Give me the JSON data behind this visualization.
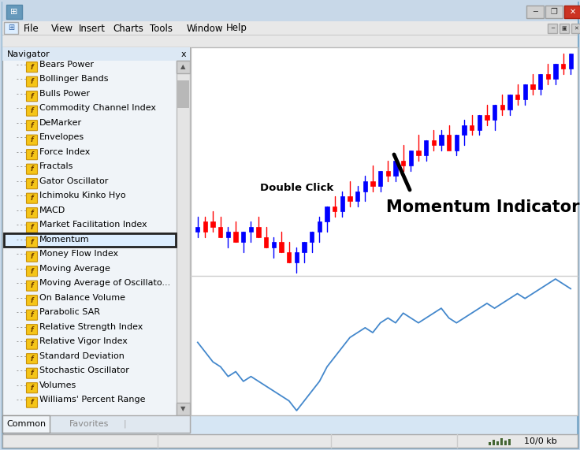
{
  "bg_color": "#c8d8e8",
  "navigator_items": [
    "Bears Power",
    "Bollinger Bands",
    "Bulls Power",
    "Commodity Channel Index",
    "DeMarker",
    "Envelopes",
    "Force Index",
    "Fractals",
    "Gator Oscillator",
    "Ichimoku Kinko Hyo",
    "MACD",
    "Market Facilitation Index",
    "Momentum",
    "Money Flow Index",
    "Moving Average",
    "Moving Average of Oscillato...",
    "On Balance Volume",
    "Parabolic SAR",
    "Relative Strength Index",
    "Relative Vigor Index",
    "Standard Deviation",
    "Stochastic Oscillator",
    "Volumes",
    "Williams' Percent Range"
  ],
  "menu_items": [
    "File",
    "View",
    "Insert",
    "Charts",
    "Tools",
    "Window",
    "Help"
  ],
  "highlighted_item": "Momentum",
  "double_click_label": "Double Click",
  "momentum_indicator_label": "Momentum Indicator",
  "candle_open": [
    55,
    54,
    56,
    55,
    53,
    54,
    52,
    54,
    55,
    53,
    51,
    52,
    50,
    48,
    50,
    52,
    54,
    56,
    59,
    58,
    61,
    60,
    62,
    64,
    63,
    66,
    65,
    68,
    67,
    70,
    69,
    72,
    71,
    73,
    70,
    73,
    75,
    74,
    77,
    76,
    79,
    78,
    81,
    80,
    83,
    82,
    85,
    84,
    87,
    86
  ],
  "candle_high": [
    57,
    57,
    58,
    57,
    55,
    56,
    54,
    56,
    57,
    55,
    53,
    54,
    52,
    51,
    52,
    54,
    57,
    59,
    61,
    62,
    64,
    63,
    65,
    67,
    66,
    68,
    68,
    71,
    70,
    73,
    72,
    74,
    74,
    75,
    73,
    76,
    77,
    77,
    79,
    79,
    81,
    81,
    83,
    83,
    85,
    85,
    87,
    87,
    89,
    89
  ],
  "candle_low": [
    53,
    53,
    54,
    53,
    51,
    52,
    50,
    52,
    53,
    51,
    49,
    50,
    48,
    46,
    48,
    50,
    52,
    54,
    57,
    57,
    59,
    59,
    60,
    62,
    62,
    64,
    64,
    66,
    66,
    68,
    68,
    70,
    70,
    71,
    69,
    71,
    73,
    73,
    75,
    74,
    77,
    77,
    79,
    79,
    81,
    81,
    83,
    83,
    85,
    85
  ],
  "candle_close": [
    54,
    56,
    55,
    53,
    54,
    52,
    54,
    55,
    53,
    51,
    52,
    50,
    48,
    50,
    52,
    54,
    56,
    59,
    58,
    61,
    60,
    62,
    64,
    63,
    66,
    65,
    68,
    67,
    70,
    69,
    72,
    71,
    73,
    70,
    73,
    75,
    74,
    77,
    76,
    79,
    78,
    81,
    80,
    83,
    82,
    85,
    84,
    87,
    86,
    89
  ],
  "candle_colors": [
    "blue",
    "red",
    "red",
    "red",
    "blue",
    "red",
    "blue",
    "blue",
    "red",
    "red",
    "blue",
    "red",
    "red",
    "blue",
    "blue",
    "blue",
    "blue",
    "blue",
    "red",
    "blue",
    "red",
    "blue",
    "blue",
    "red",
    "blue",
    "red",
    "blue",
    "red",
    "blue",
    "red",
    "blue",
    "red",
    "blue",
    "red",
    "blue",
    "blue",
    "red",
    "blue",
    "red",
    "blue",
    "red",
    "blue",
    "red",
    "blue",
    "red",
    "blue",
    "red",
    "blue",
    "red",
    "blue"
  ],
  "momentum_line": [
    95,
    93,
    91,
    90,
    88,
    89,
    87,
    88,
    87,
    86,
    85,
    84,
    83,
    81,
    83,
    85,
    87,
    90,
    92,
    94,
    96,
    97,
    98,
    97,
    99,
    100,
    99,
    101,
    100,
    99,
    100,
    101,
    102,
    100,
    99,
    100,
    101,
    102,
    103,
    102,
    103,
    104,
    105,
    104,
    105,
    106,
    107,
    108,
    107,
    106
  ],
  "status_bar_text": "10/0 kb"
}
